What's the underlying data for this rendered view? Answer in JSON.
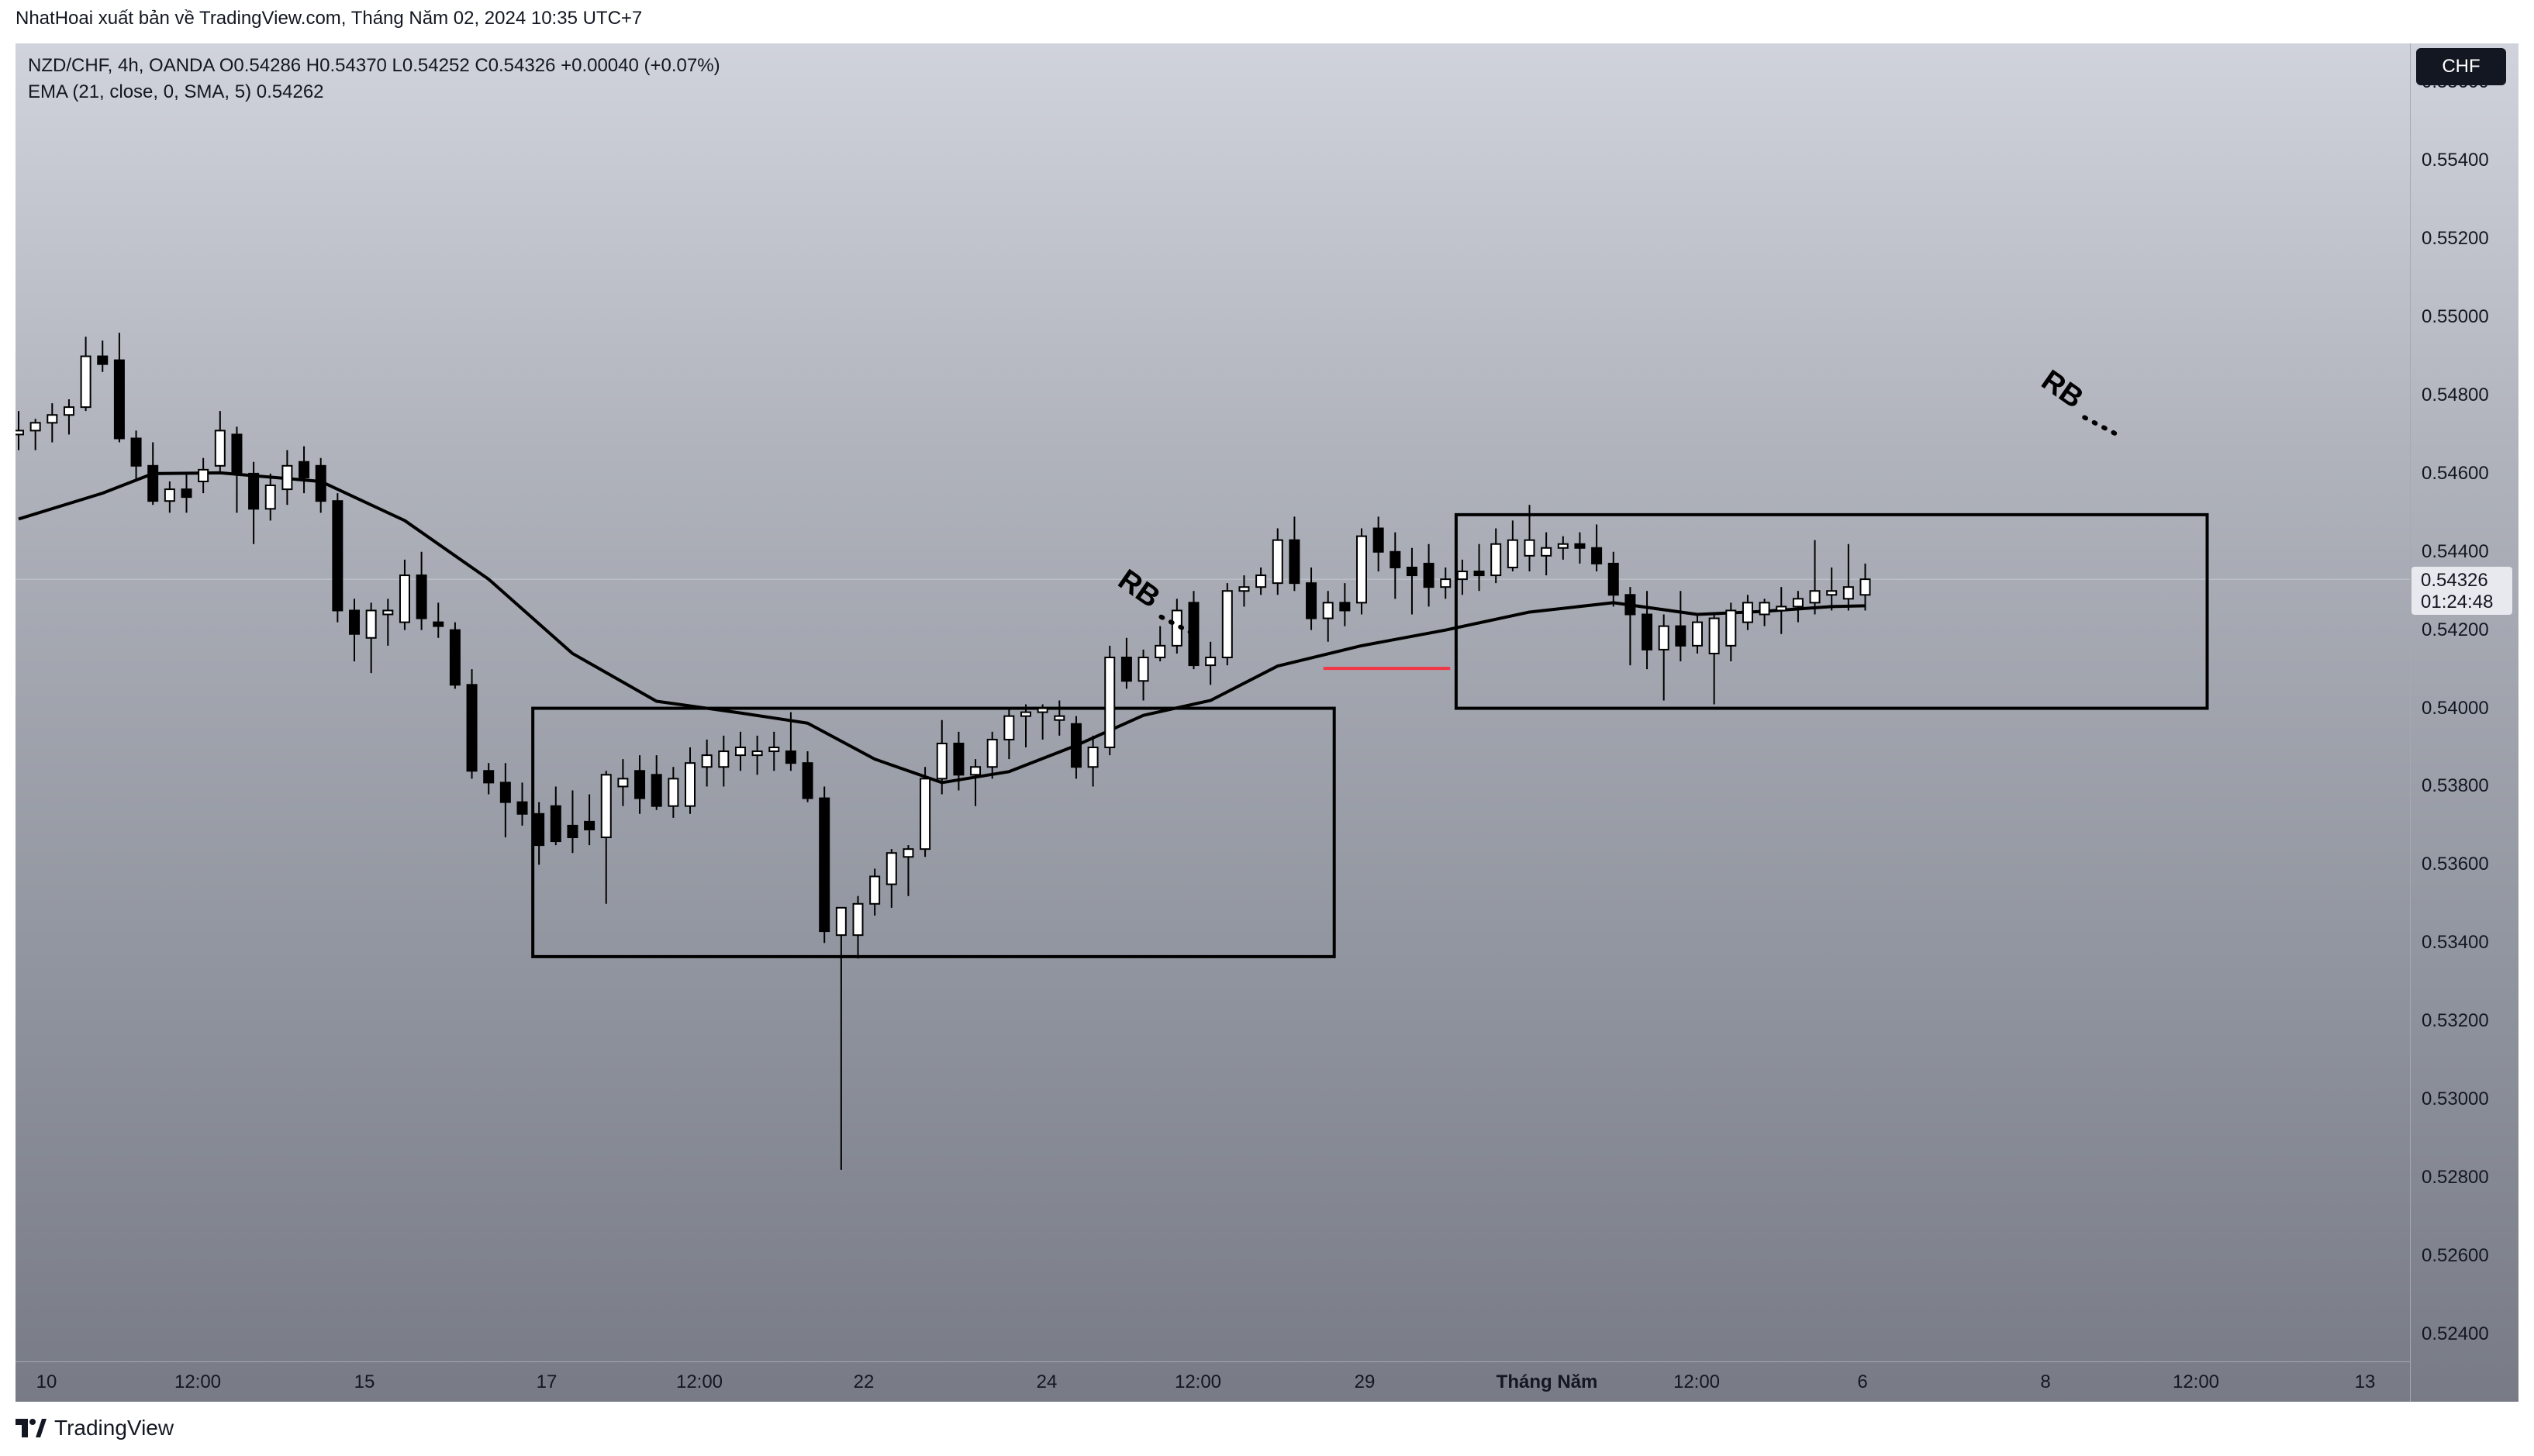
{
  "publisher_line": "NhatHoai xuất bản về TradingView.com, Tháng Năm 02, 2024 10:35 UTC+7",
  "legend": {
    "symbol_line": "NZD/CHF, 4h, OANDA  O0.54286  H0.54370  L0.54252  C0.54326  +0.00040 (+0.07%)",
    "ema_line": "EMA (21, close, 0, SMA, 5)  0.54262"
  },
  "currency_badge": "CHF",
  "last_price": {
    "price": "0.54326",
    "countdown": "01:24:48"
  },
  "footer": {
    "brand": "TradingView",
    "logo_icon": "tradingview-logo-icon"
  },
  "colors": {
    "up_candle": "#ffffff",
    "down_candle": "#000000",
    "ema": "#000000",
    "red_line": "#f23645"
  },
  "chart_data": {
    "type": "candlestick",
    "symbol": "NZD/CHF",
    "timeframe": "4h",
    "exchange": "OANDA",
    "ylim": [
      0.5233,
      0.557
    ],
    "y_ticks": [
      "0.55600",
      "0.55400",
      "0.55200",
      "0.55000",
      "0.54800",
      "0.54600",
      "0.54400",
      "0.54200",
      "0.54000",
      "0.53800",
      "0.53600",
      "0.53400",
      "0.53200",
      "0.53000",
      "0.52800",
      "0.52600",
      "0.52400"
    ],
    "x_ticks": [
      "10",
      "12:00",
      "15",
      "17",
      "12:00",
      "22",
      "24",
      "12:00",
      "29",
      "Tháng Năm",
      "12:00",
      "6",
      "8",
      "12:00",
      "13"
    ],
    "candles": [
      [
        0.547,
        0.5476,
        0.5466,
        0.5471
      ],
      [
        0.5471,
        0.5474,
        0.5466,
        0.5473
      ],
      [
        0.5473,
        0.5478,
        0.5468,
        0.5475
      ],
      [
        0.5475,
        0.5479,
        0.547,
        0.5477
      ],
      [
        0.5477,
        0.5495,
        0.5476,
        0.549
      ],
      [
        0.549,
        0.5494,
        0.5486,
        0.5488
      ],
      [
        0.5489,
        0.5496,
        0.5468,
        0.5469
      ],
      [
        0.5469,
        0.5471,
        0.5458,
        0.5462
      ],
      [
        0.5462,
        0.5468,
        0.5452,
        0.5453
      ],
      [
        0.5453,
        0.5458,
        0.545,
        0.5456
      ],
      [
        0.5456,
        0.546,
        0.545,
        0.5454
      ],
      [
        0.5458,
        0.5464,
        0.5455,
        0.5461
      ],
      [
        0.5462,
        0.5476,
        0.546,
        0.5471
      ],
      [
        0.547,
        0.5472,
        0.545,
        0.546
      ],
      [
        0.546,
        0.5463,
        0.5442,
        0.5451
      ],
      [
        0.5451,
        0.546,
        0.5448,
        0.5457
      ],
      [
        0.5456,
        0.5466,
        0.5452,
        0.5462
      ],
      [
        0.5463,
        0.5467,
        0.5455,
        0.5459
      ],
      [
        0.5462,
        0.5464,
        0.545,
        0.5453
      ],
      [
        0.5453,
        0.5455,
        0.5422,
        0.5425
      ],
      [
        0.5425,
        0.5428,
        0.5412,
        0.5419
      ],
      [
        0.5418,
        0.5427,
        0.5409,
        0.5425
      ],
      [
        0.5424,
        0.5428,
        0.5416,
        0.5425
      ],
      [
        0.5422,
        0.5438,
        0.542,
        0.5434
      ],
      [
        0.5434,
        0.544,
        0.542,
        0.5423
      ],
      [
        0.5422,
        0.5427,
        0.5418,
        0.5421
      ],
      [
        0.542,
        0.5422,
        0.5405,
        0.5406
      ],
      [
        0.5406,
        0.541,
        0.5382,
        0.5384
      ],
      [
        0.5384,
        0.5386,
        0.5378,
        0.5381
      ],
      [
        0.5381,
        0.5386,
        0.5367,
        0.5376
      ],
      [
        0.5376,
        0.5381,
        0.537,
        0.5373
      ],
      [
        0.5373,
        0.5376,
        0.536,
        0.5365
      ],
      [
        0.5375,
        0.538,
        0.5365,
        0.5366
      ],
      [
        0.537,
        0.5379,
        0.5363,
        0.5367
      ],
      [
        0.5371,
        0.5378,
        0.5365,
        0.5369
      ],
      [
        0.5367,
        0.5384,
        0.535,
        0.5383
      ],
      [
        0.538,
        0.5387,
        0.5375,
        0.5382
      ],
      [
        0.5384,
        0.5388,
        0.5373,
        0.5377
      ],
      [
        0.5383,
        0.5388,
        0.5374,
        0.5375
      ],
      [
        0.5375,
        0.5385,
        0.5372,
        0.5382
      ],
      [
        0.5375,
        0.539,
        0.5373,
        0.5386
      ],
      [
        0.5385,
        0.5392,
        0.538,
        0.5388
      ],
      [
        0.5385,
        0.5393,
        0.538,
        0.5389
      ],
      [
        0.5388,
        0.5394,
        0.5384,
        0.539
      ],
      [
        0.5388,
        0.5393,
        0.5383,
        0.5389
      ],
      [
        0.5389,
        0.5394,
        0.5384,
        0.539
      ],
      [
        0.5389,
        0.5399,
        0.5384,
        0.5386
      ],
      [
        0.5386,
        0.5389,
        0.5376,
        0.5377
      ],
      [
        0.5377,
        0.538,
        0.534,
        0.5343
      ],
      [
        0.5342,
        0.5349,
        0.5282,
        0.5349
      ],
      [
        0.5342,
        0.5352,
        0.5336,
        0.535
      ],
      [
        0.535,
        0.5359,
        0.5347,
        0.5357
      ],
      [
        0.5355,
        0.5364,
        0.5349,
        0.5363
      ],
      [
        0.5362,
        0.5365,
        0.5352,
        0.5364
      ],
      [
        0.5364,
        0.5385,
        0.5362,
        0.5382
      ],
      [
        0.5382,
        0.5397,
        0.5378,
        0.5391
      ],
      [
        0.5391,
        0.5394,
        0.5379,
        0.5383
      ],
      [
        0.5383,
        0.5387,
        0.5375,
        0.5385
      ],
      [
        0.5385,
        0.5394,
        0.5382,
        0.5392
      ],
      [
        0.5392,
        0.54,
        0.5387,
        0.5398
      ],
      [
        0.5398,
        0.5401,
        0.539,
        0.5399
      ],
      [
        0.5399,
        0.5401,
        0.5392,
        0.54
      ],
      [
        0.5397,
        0.5402,
        0.5393,
        0.5398
      ],
      [
        0.5396,
        0.5398,
        0.5382,
        0.5385
      ],
      [
        0.5385,
        0.5393,
        0.538,
        0.539
      ],
      [
        0.539,
        0.5416,
        0.5388,
        0.5413
      ],
      [
        0.5413,
        0.5418,
        0.5405,
        0.5407
      ],
      [
        0.5407,
        0.5415,
        0.5402,
        0.5413
      ],
      [
        0.5413,
        0.5421,
        0.5412,
        0.5416
      ],
      [
        0.5416,
        0.5428,
        0.5414,
        0.5425
      ],
      [
        0.5427,
        0.543,
        0.541,
        0.5411
      ],
      [
        0.5411,
        0.5417,
        0.5406,
        0.5413
      ],
      [
        0.5413,
        0.5432,
        0.5411,
        0.543
      ],
      [
        0.543,
        0.5434,
        0.5426,
        0.5431
      ],
      [
        0.5431,
        0.5436,
        0.5429,
        0.5434
      ],
      [
        0.5432,
        0.5446,
        0.5429,
        0.5443
      ],
      [
        0.5443,
        0.5449,
        0.543,
        0.5432
      ],
      [
        0.5432,
        0.5436,
        0.542,
        0.5423
      ],
      [
        0.5423,
        0.543,
        0.5417,
        0.5427
      ],
      [
        0.5427,
        0.5432,
        0.5421,
        0.5425
      ],
      [
        0.5427,
        0.5446,
        0.5424,
        0.5444
      ],
      [
        0.5446,
        0.5449,
        0.5435,
        0.544
      ],
      [
        0.544,
        0.5445,
        0.5428,
        0.5436
      ],
      [
        0.5436,
        0.5441,
        0.5424,
        0.5434
      ],
      [
        0.5437,
        0.5442,
        0.5426,
        0.5431
      ],
      [
        0.5431,
        0.5436,
        0.5428,
        0.5433
      ],
      [
        0.5433,
        0.5438,
        0.5429,
        0.5435
      ],
      [
        0.5435,
        0.5442,
        0.543,
        0.5434
      ],
      [
        0.5434,
        0.5446,
        0.5432,
        0.5442
      ],
      [
        0.5436,
        0.5448,
        0.5435,
        0.5443
      ],
      [
        0.5439,
        0.5452,
        0.5435,
        0.5443
      ],
      [
        0.5439,
        0.5445,
        0.5434,
        0.5441
      ],
      [
        0.5441,
        0.5444,
        0.5438,
        0.5442
      ],
      [
        0.5442,
        0.5445,
        0.5437,
        0.5441
      ],
      [
        0.5441,
        0.5447,
        0.5435,
        0.5437
      ],
      [
        0.5437,
        0.544,
        0.5426,
        0.5429
      ],
      [
        0.5429,
        0.5431,
        0.5411,
        0.5424
      ],
      [
        0.5424,
        0.543,
        0.541,
        0.5415
      ],
      [
        0.5415,
        0.5424,
        0.5402,
        0.5421
      ],
      [
        0.5421,
        0.543,
        0.5412,
        0.5416
      ],
      [
        0.5416,
        0.5424,
        0.5414,
        0.5422
      ],
      [
        0.5414,
        0.5424,
        0.5401,
        0.5423
      ],
      [
        0.5416,
        0.5427,
        0.5412,
        0.5425
      ],
      [
        0.5422,
        0.5429,
        0.542,
        0.5427
      ],
      [
        0.5424,
        0.5428,
        0.5421,
        0.5427
      ],
      [
        0.5425,
        0.5431,
        0.5419,
        0.5426
      ],
      [
        0.5426,
        0.543,
        0.5422,
        0.5428
      ],
      [
        0.5427,
        0.5443,
        0.5424,
        0.543
      ],
      [
        0.5429,
        0.5436,
        0.5425,
        0.543
      ],
      [
        0.5428,
        0.5442,
        0.5425,
        0.5431
      ],
      [
        0.5429,
        0.5437,
        0.5425,
        0.5433
      ]
    ],
    "ema": {
      "label": "EMA (21, close, 0, SMA, 5)",
      "points": [
        [
          0,
          0.54484
        ],
        [
          5,
          0.5455
        ],
        [
          8,
          0.546
        ],
        [
          12,
          0.54602
        ],
        [
          18,
          0.5458
        ],
        [
          23,
          0.5448
        ],
        [
          28,
          0.5433
        ],
        [
          33,
          0.5414
        ],
        [
          38,
          0.54018
        ],
        [
          43,
          0.53988
        ],
        [
          47,
          0.53962
        ],
        [
          51,
          0.5387
        ],
        [
          55,
          0.5381
        ],
        [
          59,
          0.53838
        ],
        [
          63,
          0.53905
        ],
        [
          67,
          0.53982
        ],
        [
          71,
          0.5402
        ],
        [
          75,
          0.54108
        ],
        [
          80,
          0.5416
        ],
        [
          85,
          0.542
        ],
        [
          90,
          0.54246
        ],
        [
          95,
          0.5427
        ],
        [
          100,
          0.5424
        ],
        [
          104,
          0.54248
        ],
        [
          108,
          0.5426
        ],
        [
          110,
          0.54262
        ]
      ]
    },
    "boxes": [
      {
        "from_bar": 31,
        "to_bar": 78,
        "top": 0.54,
        "bottom": 0.53365
      },
      {
        "from_bar": 86,
        "to_bar": 130,
        "top": 0.54495,
        "bottom": 0.54
      }
    ],
    "red_line": {
      "from_bar": 78,
      "to_bar": 85,
      "price": 0.54102
    },
    "annotations": [
      {
        "text": "RB",
        "bar": 70,
        "price": 0.5419
      },
      {
        "text": "RB",
        "bar": 125,
        "price": 0.547
      }
    ]
  }
}
